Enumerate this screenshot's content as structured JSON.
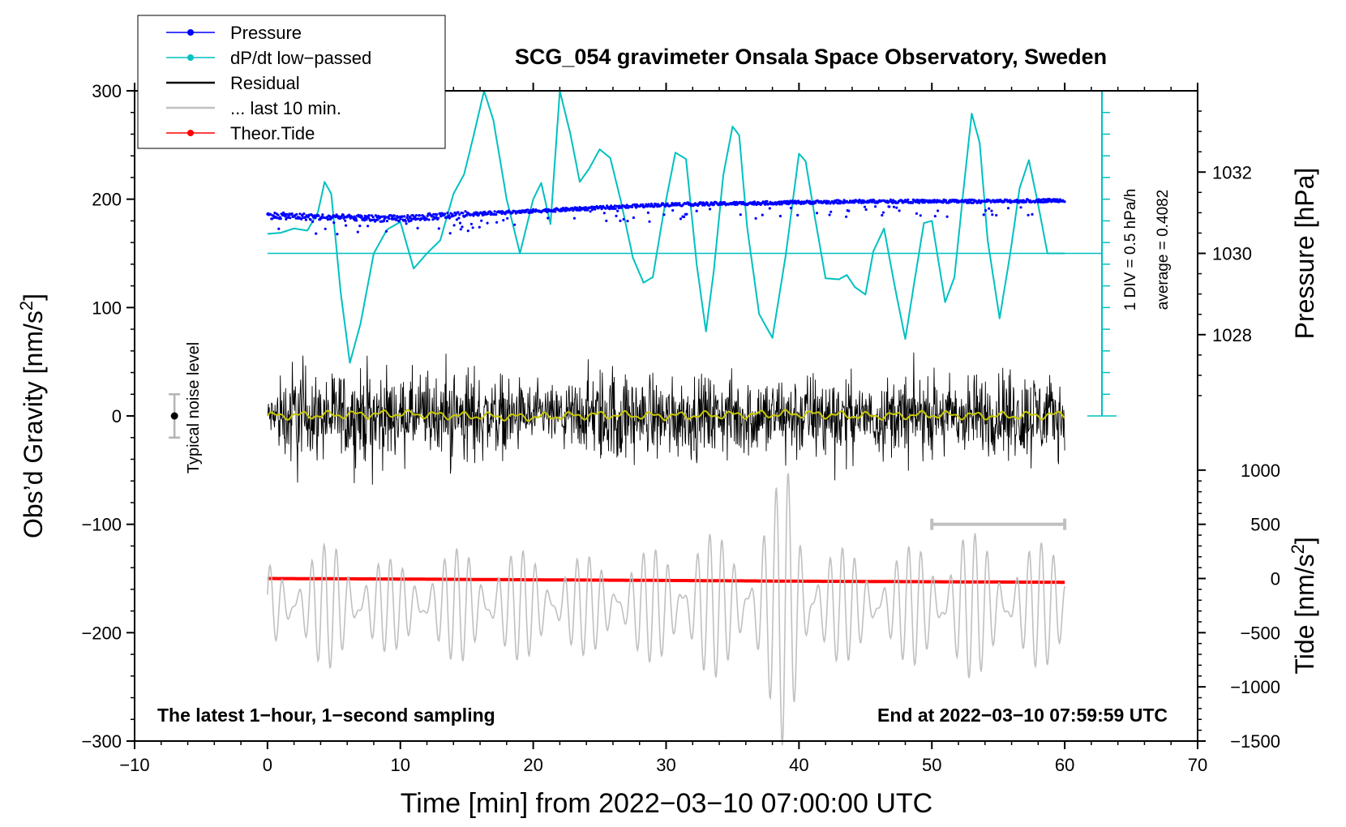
{
  "chart_data": {
    "type": "line",
    "title": "SCG_054 gravimeter Onsala Space Observatory, Sweden",
    "xlabel": "Time [min] from 2022−03−10 07:00:00 UTC",
    "xlim": [
      -10,
      70
    ],
    "xticks": [
      -10,
      0,
      10,
      20,
      30,
      40,
      50,
      60,
      70
    ],
    "xtick_labels": [
      "−10",
      "0",
      "10",
      "20",
      "30",
      "40",
      "50",
      "60",
      "70"
    ],
    "left_axis": {
      "label_main": "Obs’d Gravity [nm/s",
      "label_sup": "2",
      "label_end": "]",
      "range": [
        -300,
        300
      ],
      "ticks": [
        -300,
        -200,
        -100,
        0,
        100,
        200,
        300
      ],
      "tick_labels": [
        "−300",
        "−200",
        "−100",
        "0",
        "100",
        "200",
        "300"
      ]
    },
    "pressure_axis": {
      "label": "Pressure [hPa]",
      "ticks": [
        1028,
        1030,
        1032
      ],
      "tick_labels": [
        "1028",
        "1030",
        "1032"
      ],
      "gravity_at_1030": 150,
      "gravity_per_hPa": 37.5
    },
    "tide_axis": {
      "label_main": "Tide [nm/s",
      "label_sup": "2",
      "label_end": "]",
      "ticks": [
        -1500,
        -1000,
        -500,
        0,
        500,
        1000
      ],
      "tick_labels": [
        "−1500",
        "−1000",
        "−500",
        "0",
        "500",
        "1000"
      ],
      "gravity_at_zero": -150,
      "gravity_per_unit": 0.1
    },
    "dpdt_scale": {
      "div_label": "1 DIV = 0.5 hPa/h",
      "average_label": "average = 0.4082",
      "divisions": 15,
      "bar_top": 300,
      "bar_bottom": 0,
      "baseline": 150
    },
    "legend": {
      "placement": "top-left",
      "entries": [
        {
          "label": "Pressure",
          "color": "#0000ff",
          "marker": "dot"
        },
        {
          "label": "dP/dt low−passed",
          "color": "#00c0c0",
          "marker": "dot"
        },
        {
          "label": "Residual",
          "color": "#000000",
          "marker": "none"
        },
        {
          "label": "... last 10 min.",
          "color": "#c0c0c0",
          "marker": "none"
        },
        {
          "label": "Theor.Tide",
          "color": "#ff0000",
          "marker": "dot"
        }
      ]
    },
    "annotations": {
      "noise_label": "Typical noise level",
      "noise_level": [
        -20,
        20
      ],
      "noise_x": -7,
      "left_note": "The latest 1−hour, 1−second sampling",
      "right_note": "End at 2022−03−10 07:59:59 UTC",
      "window_bar": {
        "x": [
          50,
          60
        ],
        "y": -100
      }
    },
    "series": [
      {
        "name": "Pressure",
        "color": "#0000ff",
        "unit": "hPa (gravity axis)",
        "x": [
          0,
          5,
          10,
          15,
          20,
          25,
          30,
          35,
          40,
          45,
          50,
          55,
          60
        ],
        "values": [
          185,
          183,
          182,
          186,
          189,
          192,
          195,
          196,
          197,
          198,
          198,
          198,
          199
        ]
      },
      {
        "name": "dP/dt low-passed",
        "color": "#00c0c0",
        "x": [
          0,
          1,
          2,
          3,
          3.8,
          4.3,
          4.8,
          5.5,
          6.2,
          7,
          8,
          9,
          10,
          11,
          12,
          13,
          14,
          14.8,
          15.5,
          16.3,
          17,
          18,
          19,
          20,
          20.6,
          21.3,
          22,
          22.8,
          23.5,
          24.2,
          25,
          25.8,
          26.6,
          27.5,
          28.3,
          29,
          29.8,
          30.7,
          31.5,
          32.3,
          33,
          33.6,
          34.3,
          35,
          35.5,
          36.1,
          37,
          38,
          39,
          40,
          40.5,
          41.2,
          42,
          43,
          43.6,
          44.2,
          45,
          45.6,
          46.4,
          47.2,
          48,
          48.7,
          49.4,
          50,
          51,
          51.7,
          52.4,
          53,
          53.6,
          54.2,
          55.1,
          55.9,
          56.6,
          57.3,
          58,
          58.7,
          59.5,
          60
        ],
        "values": [
          168,
          169,
          173,
          171,
          188,
          216,
          205,
          115,
          49,
          85,
          150,
          172,
          179,
          136,
          150,
          162,
          205,
          223,
          258,
          300,
          273,
          200,
          150,
          200,
          215,
          177,
          300,
          260,
          216,
          228,
          246,
          238,
          198,
          146,
          123,
          128,
          187,
          243,
          237,
          140,
          78,
          135,
          222,
          267,
          259,
          174,
          94,
          72,
          148,
          242,
          235,
          183,
          127,
          126,
          130,
          119,
          112,
          152,
          173,
          120,
          71,
          125,
          178,
          180,
          105,
          128,
          211,
          279,
          252,
          162,
          90,
          150,
          210,
          236,
          195,
          150,
          150,
          150
        ]
      },
      {
        "name": "Residual",
        "color": "#000000",
        "envelope_x": [
          0,
          2,
          4,
          6,
          8,
          10,
          12,
          14,
          16,
          18,
          20,
          22,
          24,
          26,
          28,
          30,
          32,
          34,
          36,
          38,
          40,
          42,
          44,
          46,
          48,
          50,
          52,
          54,
          56,
          58,
          60
        ],
        "envelope_values": [
          25,
          90,
          50,
          75,
          70,
          55,
          60,
          75,
          60,
          55,
          45,
          40,
          65,
          75,
          60,
          55,
          60,
          55,
          65,
          60,
          60,
          65,
          50,
          55,
          60,
          55,
          60,
          60,
          70,
          70,
          50
        ]
      },
      {
        "name": "Residual smoothed",
        "color": "#c8c800",
        "x": [
          0,
          5,
          10,
          15,
          20,
          25,
          30,
          35,
          40,
          45,
          50,
          55,
          60
        ],
        "values": [
          0,
          1,
          2,
          0,
          -1,
          1,
          0,
          1,
          2,
          0,
          1,
          0,
          1
        ]
      },
      {
        "name": "... last 10 min.",
        "color": "#c0c0c0",
        "envelope_x": [
          0,
          5,
          10,
          15,
          20,
          25,
          30,
          32,
          35,
          38,
          39,
          40,
          42,
          45,
          50,
          52,
          55,
          60
        ],
        "envelope_values": [
          40,
          60,
          40,
          55,
          50,
          45,
          55,
          75,
          60,
          100,
          140,
          100,
          60,
          45,
          60,
          75,
          55,
          60
        ]
      },
      {
        "name": "Theor.Tide",
        "color": "#ff0000",
        "unit": "nm/s2 (tide axis)",
        "x": [
          0,
          10,
          20,
          30,
          40,
          50,
          60
        ],
        "values": [
          0,
          -5,
          -12,
          -18,
          -25,
          -30,
          -35
        ]
      }
    ]
  }
}
